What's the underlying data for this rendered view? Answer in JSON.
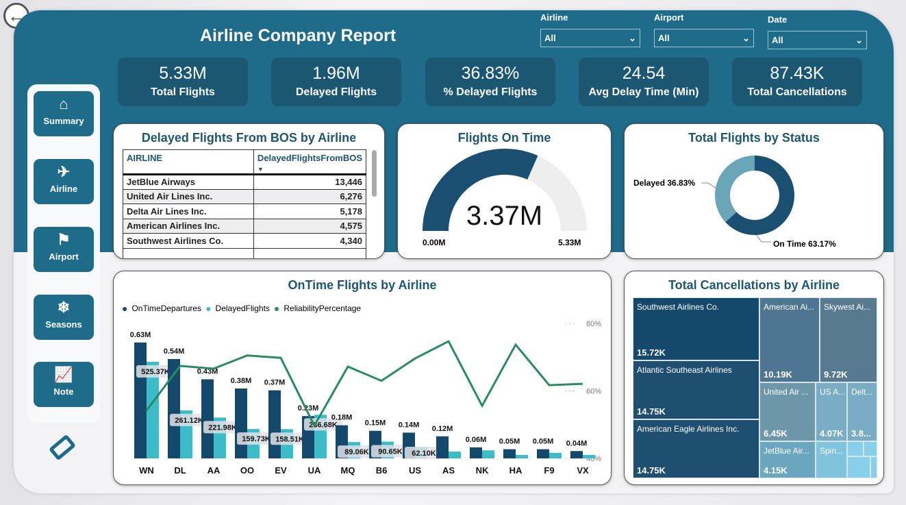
{
  "header": {
    "title": "Airline Company Report",
    "back_icon": "arrow-left-icon"
  },
  "filters": [
    {
      "label": "Airline",
      "value": "All"
    },
    {
      "label": "Airport",
      "value": "All"
    },
    {
      "label": "Date",
      "value": "All"
    }
  ],
  "kpis": [
    {
      "value": "5.33M",
      "label": "Total Flights"
    },
    {
      "value": "1.96M",
      "label": "Delayed Flights"
    },
    {
      "value": "36.83%",
      "label": "% Delayed Flights"
    },
    {
      "value": "24.54",
      "label": "Avg Delay Time (Min)"
    },
    {
      "value": "87.43K",
      "label": "Total Cancellations"
    }
  ],
  "nav": [
    {
      "label": "Summary",
      "icon": "home-icon"
    },
    {
      "label": "Airline",
      "icon": "airplane-icon"
    },
    {
      "label": "Airport",
      "icon": "airport-tower-icon"
    },
    {
      "label": "Seasons",
      "icon": "seasons-icon"
    },
    {
      "label": "Note",
      "icon": "note-chart-icon"
    }
  ],
  "bos_table": {
    "title": "Delayed Flights From BOS by Airline",
    "columns": [
      "AIRLINE",
      "DelayedFlightsFromBOS"
    ],
    "rows": [
      [
        "JetBlue Airways",
        "13,446"
      ],
      [
        "United Air Lines Inc.",
        "6,276"
      ],
      [
        "Delta Air Lines Inc.",
        "5,178"
      ],
      [
        "American Airlines Inc.",
        "4,575"
      ],
      [
        "Southwest Airlines Co.",
        "4,340"
      ]
    ]
  },
  "gauge": {
    "title": "Flights On Time",
    "value": 3.37,
    "max": 5.33,
    "value_label": "3.37M",
    "min_label": "0.00M",
    "max_label": "5.33M",
    "colors": {
      "fill": "#1b4f72",
      "track": "#efeeee"
    }
  },
  "donut": {
    "title": "Total Flights by Status",
    "slices": [
      {
        "label": "On Time 63.17%",
        "value": 63.17,
        "color": "#1b4f72"
      },
      {
        "label": "Delayed 36.83%",
        "value": 36.83,
        "color": "#6aa5b8"
      }
    ]
  },
  "chart_data": {
    "type": "bar",
    "title": "OnTime Flights by Airline",
    "categories": [
      "WN",
      "DL",
      "AA",
      "OO",
      "EV",
      "UA",
      "MQ",
      "B6",
      "US",
      "AS",
      "NK",
      "HA",
      "F9",
      "VX"
    ],
    "series": [
      {
        "name": "OnTimeDepartures",
        "color": "#15496b",
        "unit": "M",
        "values": [
          0.63,
          0.54,
          0.43,
          0.38,
          0.37,
          0.23,
          0.18,
          0.15,
          0.14,
          0.12,
          0.06,
          0.05,
          0.05,
          0.04
        ],
        "labels": [
          "0.63M",
          "0.54M",
          "0.43M",
          "0.38M",
          "0.37M",
          "0.23M",
          "0.18M",
          "0.15M",
          "0.14M",
          "0.12M",
          "0.06M",
          "0.05M",
          "0.05M",
          "0.04M"
        ]
      },
      {
        "name": "DelayedFlights",
        "color": "#3bbcc7",
        "unit": "M",
        "values": [
          0.525,
          0.261,
          0.222,
          0.16,
          0.159,
          0.237,
          0.089,
          0.091,
          0.062,
          0.037,
          0.044,
          0.019,
          0.03,
          0.019
        ],
        "labels": [
          "525.37K",
          "261.12K",
          "221.98K",
          "159.73K",
          "158.51K",
          "236.68K",
          "89.06K",
          "90.65K",
          "62.10K",
          null,
          null,
          null,
          null,
          null
        ]
      },
      {
        "name": "ReliabilityPercentage",
        "color": "#2a8a63",
        "type": "line",
        "axis": "right",
        "values": [
          54.2,
          67.4,
          66.6,
          70.5,
          69.8,
          49.7,
          67.2,
          63.0,
          69.6,
          74.7,
          55.6,
          73.7,
          61.7,
          62.1
        ]
      }
    ],
    "ylim": [
      0,
      0.7
    ],
    "y2lim": [
      40,
      80
    ],
    "y2ticks": [
      "40%",
      "60%",
      "80%"
    ],
    "legend": "top-left"
  },
  "treemap": {
    "title": "Total Cancellations by Airline",
    "cells": [
      {
        "name": "Southwest Airlines Co.",
        "value": "15.72K"
      },
      {
        "name": "Atlantic Southeast Airlines",
        "value": "14.75K"
      },
      {
        "name": "American Eagle Airlines Inc.",
        "value": "14.75K"
      },
      {
        "name": "American Ai...",
        "value": "10.19K"
      },
      {
        "name": "Skywest Ai...",
        "value": "9.72K"
      },
      {
        "name": "United Air ...",
        "value": "6.45K"
      },
      {
        "name": "US A...",
        "value": "4.07K"
      },
      {
        "name": "Delt...",
        "value": "3.8..."
      },
      {
        "name": "JetBlue Air...",
        "value": "4.15K"
      },
      {
        "name": "Spiri...",
        "value": ""
      }
    ]
  }
}
